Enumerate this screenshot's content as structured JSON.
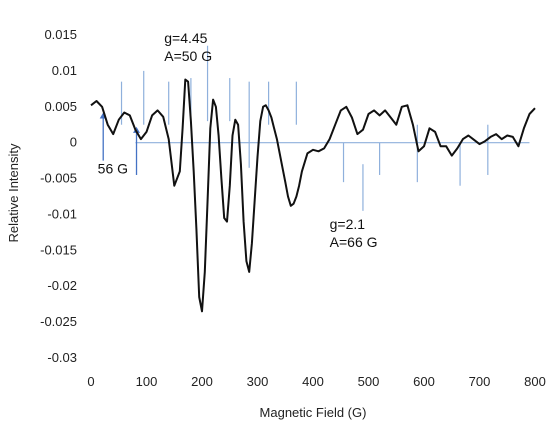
{
  "chart_data": {
    "type": "line",
    "title": "",
    "xlabel": "Magnetic Field (G)",
    "ylabel": "Relative Intensity",
    "xlim": [
      0,
      800
    ],
    "ylim": [
      -0.03,
      0.015
    ],
    "x_ticks": [
      0,
      100,
      200,
      300,
      400,
      500,
      600,
      700,
      800
    ],
    "y_ticks": [
      -0.03,
      -0.025,
      -0.02,
      -0.015,
      -0.01,
      -0.005,
      0,
      0.005,
      0.01,
      0.015
    ],
    "x_tick_labels": [
      "0",
      "100",
      "200",
      "300",
      "400",
      "500",
      "600",
      "700",
      "800"
    ],
    "y_tick_labels": [
      "-0.03",
      "-0.025",
      "-0.02",
      "-0.015",
      "-0.01",
      "-0.005",
      "0",
      "0.005",
      "0.01",
      "0.015"
    ],
    "grid": false,
    "legend": "none",
    "colors": {
      "spectrum": "#111111",
      "markers": "#8fb0dc",
      "arrows": "#4472c4"
    },
    "series": [
      {
        "x": [
          0,
          10,
          20,
          30,
          40,
          50,
          60,
          70,
          80,
          90,
          100,
          110,
          120,
          130,
          140,
          150,
          160,
          165,
          170,
          175,
          180,
          185,
          190,
          195,
          200,
          205,
          210,
          215,
          220,
          225,
          230,
          235,
          240,
          245,
          250,
          255,
          260,
          265,
          270,
          275,
          280,
          285,
          290,
          295,
          300,
          305,
          310,
          315,
          320,
          325,
          330,
          335,
          340,
          345,
          350,
          355,
          360,
          365,
          370,
          375,
          380,
          390,
          400,
          410,
          420,
          430,
          440,
          450,
          460,
          470,
          480,
          490,
          500,
          510,
          520,
          530,
          540,
          550,
          560,
          570,
          580,
          590,
          600,
          610,
          620,
          630,
          640,
          650,
          660,
          670,
          680,
          690,
          700,
          710,
          720,
          730,
          740,
          750,
          760,
          770,
          780,
          790,
          800
        ],
        "y": [
          0.0052,
          0.0058,
          0.005,
          0.0025,
          0.0012,
          0.0032,
          0.0042,
          0.0038,
          0.0018,
          0.0005,
          0.0015,
          0.0038,
          0.0045,
          0.0036,
          0.0005,
          -0.006,
          -0.004,
          0.002,
          0.0088,
          0.0085,
          0.003,
          -0.004,
          -0.012,
          -0.0215,
          -0.0235,
          -0.018,
          -0.008,
          0.002,
          0.006,
          0.005,
          0.001,
          -0.005,
          -0.0105,
          -0.011,
          -0.006,
          0.001,
          0.0032,
          0.0025,
          -0.003,
          -0.011,
          -0.0165,
          -0.018,
          -0.014,
          -0.008,
          -0.002,
          0.003,
          0.005,
          0.0052,
          0.0045,
          0.0035,
          0.002,
          0.0005,
          -0.0015,
          -0.0035,
          -0.0055,
          -0.0075,
          -0.0088,
          -0.0085,
          -0.0075,
          -0.006,
          -0.004,
          -0.0015,
          -0.001,
          -0.0012,
          -0.0008,
          0.0005,
          0.0025,
          0.0045,
          0.005,
          0.0035,
          0.0012,
          0.0018,
          0.004,
          0.0045,
          0.0038,
          0.0045,
          0.0035,
          0.0025,
          0.005,
          0.0052,
          0.0025,
          -0.0012,
          -0.0005,
          0.002,
          0.0015,
          -0.0005,
          -0.0005,
          -0.0018,
          -0.0008,
          0.0005,
          0.001,
          0.0004,
          -0.0002,
          0.0002,
          0.0008,
          0.0012,
          0.0005,
          0.001,
          0.0008,
          -0.0005,
          0.002,
          0.004,
          0.0048
        ]
      }
    ],
    "marker_lines": [
      {
        "x": 55,
        "y_top": 0.0085,
        "y_bottom": 0.0025
      },
      {
        "x": 95,
        "y_top": 0.01,
        "y_bottom": 0.0025
      },
      {
        "x": 140,
        "y_top": 0.0085,
        "y_bottom": 0.0025
      },
      {
        "x": 180,
        "y_top": 0.009,
        "y_bottom": 0.003
      },
      {
        "x": 210,
        "y_top": 0.0135,
        "y_bottom": 0.003
      },
      {
        "x": 250,
        "y_top": 0.009,
        "y_bottom": 0.003
      },
      {
        "x": 285,
        "y_top": 0.0085,
        "y_bottom": -0.0035
      },
      {
        "x": 320,
        "y_top": 0.0085,
        "y_bottom": 0.0025
      },
      {
        "x": 370,
        "y_top": 0.0085,
        "y_bottom": 0.0025
      },
      {
        "x": 455,
        "y_top": 0,
        "y_bottom": -0.0055
      },
      {
        "x": 490,
        "y_top": -0.003,
        "y_bottom": -0.0095
      },
      {
        "x": 520,
        "y_top": 0,
        "y_bottom": -0.0045
      },
      {
        "x": 588,
        "y_top": 0.0025,
        "y_bottom": -0.0055
      },
      {
        "x": 665,
        "y_top": 0,
        "y_bottom": -0.006
      },
      {
        "x": 715,
        "y_top": 0.0025,
        "y_bottom": -0.0045
      }
    ],
    "baseline": {
      "x_start": 80,
      "x_end": 790,
      "y": 0
    },
    "arrows": [
      {
        "x": 22,
        "y_from": -0.0025,
        "y_to": 0.0042
      },
      {
        "x": 82,
        "y_from": -0.0045,
        "y_to": 0.0022
      }
    ],
    "annotations": [
      {
        "lines": [
          "g=4.45",
          "A=50 G"
        ],
        "x": 132,
        "y_top": 0.0157
      },
      {
        "lines": [
          "56 G"
        ],
        "x": 12,
        "y_top": -0.0025
      },
      {
        "lines": [
          "g=2.1",
          "A=66 G"
        ],
        "x": 430,
        "y_top": -0.0102
      }
    ]
  }
}
